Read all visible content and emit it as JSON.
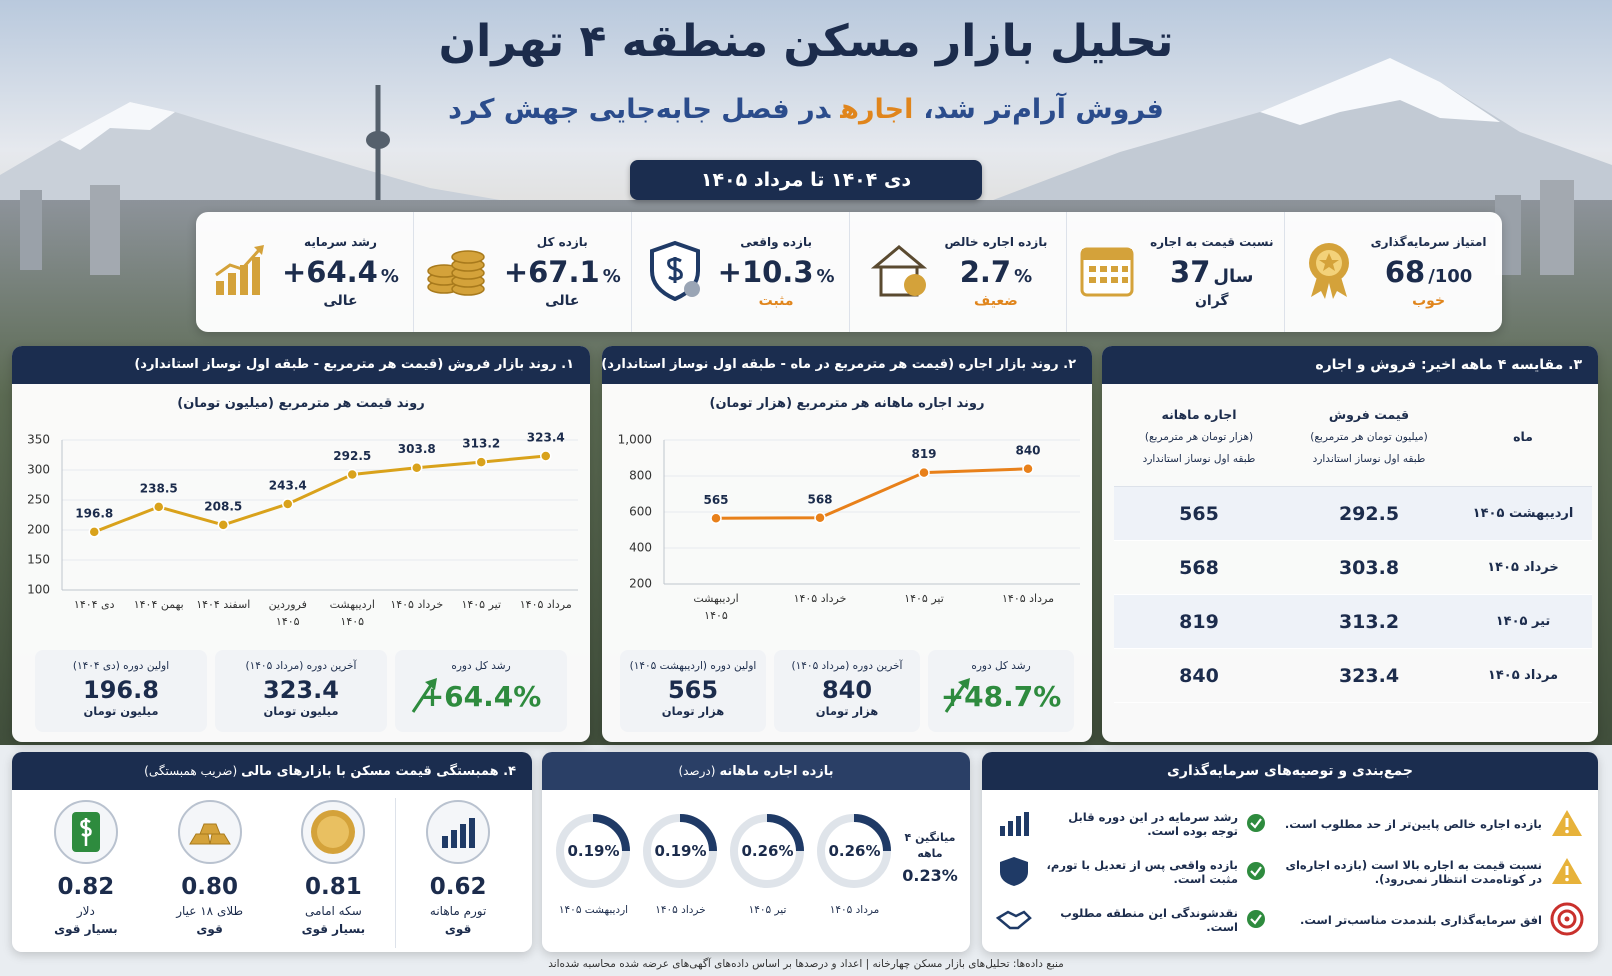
{
  "header": {
    "title": "تحلیل بازار مسکن منطقه ۴ تهران",
    "subtitle_start": "فروش آرام‌تر شد،",
    "subtitle_highlight": "اجاره",
    "subtitle_end": "در فصل جابه‌جایی جهش کرد",
    "period": "دی ۱۴۰۴ تا مرداد ۱۴۰۵"
  },
  "kpis": [
    {
      "label": "امتیاز سرمایه‌گذاری",
      "value": "68",
      "unit": "/100",
      "rating": "خوب"
    },
    {
      "label": "نسبت قیمت به اجاره",
      "value": "37",
      "unit": "سال",
      "rating": "گران"
    },
    {
      "label": "بازده اجاره خالص",
      "value": "2.7",
      "unit": "%",
      "rating": "ضعیف"
    },
    {
      "label": "بازده واقعی",
      "value": "+10.3",
      "unit": "%",
      "rating": "مثبت"
    },
    {
      "label": "بازده کل",
      "value": "+67.1",
      "unit": "%",
      "rating": "عالی"
    },
    {
      "label": "رشد سرمایه",
      "value": "+64.4",
      "unit": "%",
      "rating": "عالی"
    }
  ],
  "chart_data": [
    {
      "type": "line",
      "panel_title": "۱. روند بازار فروش (قیمت هر مترمربع - طبقه اول نوساز استاندارد)",
      "title": "روند قیمت هر مترمربع (میلیون تومان)",
      "categories": [
        "دی ۱۴۰۴",
        "بهمن ۱۴۰۴",
        "اسفند ۱۴۰۴",
        "فروردین ۱۴۰۵",
        "اردیبهشت ۱۴۰۵",
        "خرداد ۱۴۰۵",
        "تیر ۱۴۰۵",
        "مرداد ۱۴۰۵"
      ],
      "values": [
        196.8,
        238.5,
        208.5,
        243.4,
        292.5,
        303.8,
        313.2,
        323.4
      ],
      "color": "#d9a21b",
      "ylim": [
        100,
        350
      ],
      "yticks": [
        100,
        150,
        200,
        250,
        300,
        350
      ],
      "grid": true
    },
    {
      "type": "line",
      "panel_title": "۲. روند بازار اجاره (قیمت هر مترمربع در ماه - طبقه اول نوساز استاندارد)",
      "title": "روند اجاره ماهانه هر مترمربع (هزار تومان)",
      "categories": [
        "اردیبهشت ۱۴۰۵",
        "خرداد ۱۴۰۵",
        "تیر ۱۴۰۵",
        "مرداد ۱۴۰۵"
      ],
      "values": [
        565,
        568,
        819,
        840
      ],
      "color": "#e8801a",
      "ylim": [
        200,
        1000
      ],
      "yticks": [
        200,
        400,
        600,
        800,
        {
          "value": 1000,
          "label": "1,000"
        }
      ],
      "grid": true
    }
  ],
  "sales_stats": [
    {
      "label": "رشد کل دوره",
      "value": "+64.4%"
    },
    {
      "label": "آخرین دوره (مرداد ۱۴۰۵)",
      "value": "323.4",
      "unit": "میلیون تومان"
    },
    {
      "label": "اولین دوره (دی ۱۴۰۴)",
      "value": "196.8",
      "unit": "میلیون تومان"
    }
  ],
  "rent_stats": [
    {
      "label": "رشد کل دوره",
      "value": "+48.7%"
    },
    {
      "label": "آخرین دوره (مرداد ۱۴۰۵)",
      "value": "840",
      "unit": "هزار تومان"
    },
    {
      "label": "اولین دوره (اردیبهشت ۱۴۰۵)",
      "value": "565",
      "unit": "هزار تومان"
    }
  ],
  "comparison": {
    "title": "۳. مقایسه ۴ ماهه اخیر: فروش و اجاره",
    "columns": [
      {
        "name": "ماه"
      },
      {
        "name": "قیمت فروش",
        "unit": "(میلیون تومان هر مترمربع)",
        "note": "طبقه اول نوساز استاندارد"
      },
      {
        "name": "اجاره ماهانه",
        "unit": "(هزار تومان هر مترمربع)",
        "note": "طبقه اول نوساز استاندارد"
      }
    ],
    "rows": [
      [
        "اردیبهشت ۱۴۰۵",
        292.5,
        565
      ],
      [
        "خرداد ۱۴۰۵",
        303.8,
        568
      ],
      [
        "تیر ۱۴۰۵",
        313.2,
        819
      ],
      [
        "مرداد ۱۴۰۵",
        323.4,
        840
      ]
    ]
  },
  "correlation": {
    "title": "۴. همبستگی قیمت مسکن با بازارهای مالی",
    "title_note": "(ضریب همبستگی)",
    "items": [
      {
        "label": "تورم ماهانه",
        "value": "0.62",
        "strength": "قوی"
      },
      {
        "label": "سکه امامی",
        "value": "0.81",
        "strength": "بسیار قوی"
      },
      {
        "label": "طلای ۱۸ عیار",
        "value": "0.80",
        "strength": "قوی"
      },
      {
        "label": "دلار",
        "value": "0.82",
        "strength": "بسیار قوی"
      }
    ]
  },
  "rent_yield": {
    "title": "بازده اجاره ماهانه",
    "title_note": "(درصد)",
    "average_label": "میانگین ۴ ماهه",
    "average": "0.23%",
    "items": [
      {
        "month": "مرداد ۱۴۰۵",
        "value": "0.26%"
      },
      {
        "month": "تیر ۱۴۰۵",
        "value": "0.26%"
      },
      {
        "month": "خرداد ۱۴۰۵",
        "value": "0.19%"
      },
      {
        "month": "اردیبهشت ۱۴۰۵",
        "value": "0.19%"
      }
    ]
  },
  "summary": {
    "title": "جمع‌بندی و توصیه‌های سرمایه‌گذاری",
    "warnings": [
      "بازده اجاره خالص پایین‌تر از حد مطلوب است.",
      "نسبت قیمت به اجاره بالا است (بازده اجاره‌ای در کوتاه‌مدت انتظار نمی‌رود).",
      "افق سرمایه‌گذاری بلندمدت مناسب‌تر است."
    ],
    "positives": [
      "رشد سرمایه در این دوره قابل توجه بوده است.",
      "بازده واقعی پس از تعدیل با تورم، مثبت است.",
      "نقدشوندگی این منطقه مطلوب است."
    ]
  },
  "footer": "منبع داده‌ها: تحلیل‌های بازار مسکن چهارخانه | اعداد و درصدها بر اساس داده‌های آگهی‌های عرضه شده محاسبه شده‌اند"
}
